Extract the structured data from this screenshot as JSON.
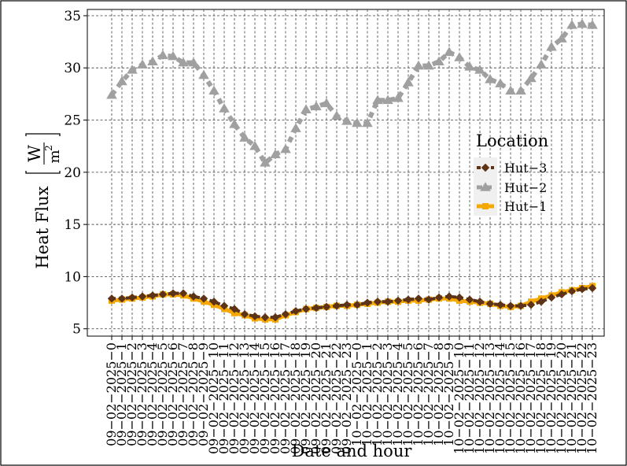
{
  "chart_data": {
    "type": "line",
    "title": "",
    "xlabel": "Date and hour",
    "ylabel": {
      "main": "Heat Flux",
      "unit_num": "W",
      "unit_den": "m",
      "unit_den_exp": "2"
    },
    "ylim": [
      4.3,
      35.6
    ],
    "yticks": [
      5,
      10,
      15,
      20,
      25,
      30,
      35
    ],
    "grid": true,
    "legend": {
      "title": "Location",
      "position": "right",
      "entries": [
        "Hut−3",
        "Hut−2",
        "Hut−1"
      ]
    },
    "x": [
      "09−02−2025−0",
      "09−02−2025−1",
      "09−02−2025−2",
      "09−02−2025−3",
      "09−02−2025−4",
      "09−02−2025−5",
      "09−02−2025−6",
      "09−02−2025−7",
      "09−02−2025−8",
      "09−02−2025−9",
      "09−02−2025−10",
      "09−02−2025−11",
      "09−02−2025−12",
      "09−02−2025−13",
      "09−02−2025−14",
      "09−02−2025−15",
      "09−02−2025−16",
      "09−02−2025−17",
      "09−02−2025−18",
      "09−02−2025−19",
      "09−02−2025−20",
      "09−02−2025−21",
      "09−02−2025−22",
      "09−02−2025−23",
      "10−02−2025−0",
      "10−02−2025−1",
      "10−02−2025−2",
      "10−02−2025−3",
      "10−02−2025−4",
      "10−02−2025−5",
      "10−02−2025−6",
      "10−02−2025−7",
      "10−02−2025−8",
      "10−02−2025−9",
      "10−02−2025−10",
      "10−02−2025−11",
      "10−02−2025−12",
      "10−02−2025−13",
      "10−02−2025−14",
      "10−02−2025−15",
      "10−02−2025−16",
      "10−02−2025−17",
      "10−02−2025−18",
      "10−02−2025−19",
      "10−02−2025−20",
      "10−02−2025−21",
      "10−02−2025−22",
      "10−02−2025−23"
    ],
    "series": [
      {
        "name": "Hut−3",
        "color": "#5c3317",
        "marker": "diamond",
        "values": [
          7.9,
          7.9,
          8.0,
          8.1,
          8.2,
          8.3,
          8.4,
          8.4,
          8.1,
          7.9,
          7.6,
          7.2,
          6.9,
          6.4,
          6.2,
          6.1,
          6.1,
          6.4,
          6.7,
          6.9,
          7.0,
          7.1,
          7.2,
          7.3,
          7.3,
          7.5,
          7.6,
          7.6,
          7.7,
          7.8,
          7.9,
          7.8,
          8.0,
          8.1,
          8.0,
          7.8,
          7.6,
          7.4,
          7.3,
          7.2,
          7.2,
          7.3,
          7.6,
          8.0,
          8.3,
          8.6,
          8.8,
          8.9
        ]
      },
      {
        "name": "Hut−2",
        "color": "#a0a0a0",
        "marker": "triangle",
        "values": [
          27.4,
          28.7,
          29.8,
          30.3,
          30.6,
          31.2,
          31.1,
          30.5,
          30.5,
          29.3,
          27.8,
          26.1,
          24.6,
          23.3,
          22.5,
          20.9,
          21.7,
          22.2,
          24.2,
          26.0,
          26.3,
          26.6,
          25.4,
          24.9,
          24.7,
          24.7,
          26.9,
          26.9,
          27.1,
          28.6,
          30.2,
          30.2,
          30.6,
          31.5,
          31.0,
          30.1,
          29.8,
          28.9,
          28.5,
          27.8,
          27.8,
          29.0,
          30.3,
          32.0,
          32.8,
          34.1,
          34.2,
          34.1
        ]
      },
      {
        "name": "Hut−1",
        "color": "#f5a800",
        "marker": "square",
        "values": [
          7.7,
          7.8,
          7.9,
          8.0,
          8.1,
          8.3,
          8.3,
          8.2,
          7.9,
          7.6,
          7.3,
          6.9,
          6.5,
          6.3,
          6.0,
          5.9,
          5.9,
          6.3,
          6.6,
          6.9,
          7.0,
          7.1,
          7.2,
          7.2,
          7.3,
          7.4,
          7.5,
          7.6,
          7.6,
          7.7,
          7.7,
          7.8,
          7.9,
          7.9,
          7.7,
          7.6,
          7.5,
          7.4,
          7.2,
          7.1,
          7.2,
          7.6,
          7.9,
          8.2,
          8.5,
          8.7,
          8.9,
          9.1
        ]
      }
    ]
  }
}
